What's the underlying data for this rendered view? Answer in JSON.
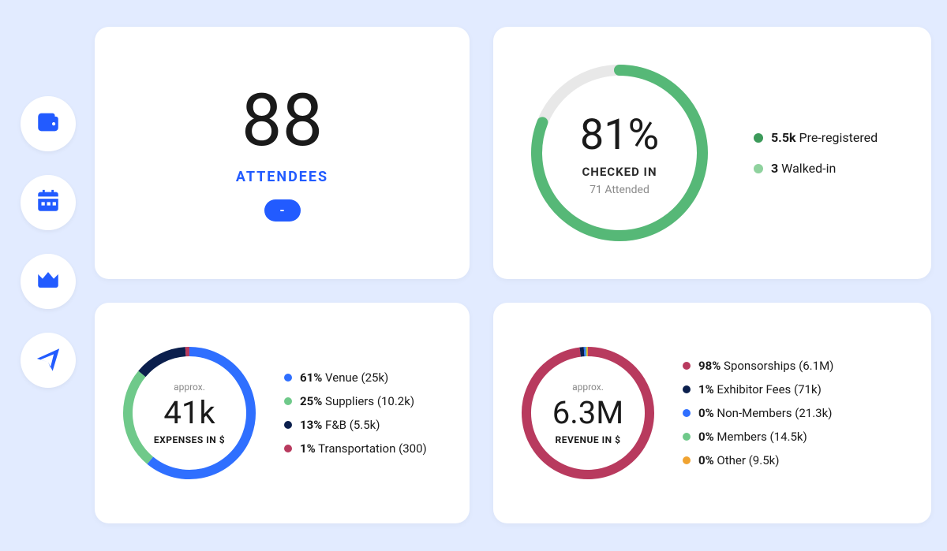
{
  "colors": {
    "bg": "#e2ebff",
    "accent": "#225bff",
    "card": "#ffffff",
    "text": "#1a1a1a",
    "muted": "#888888",
    "ring_track": "#e8e8e8"
  },
  "sidebar": {
    "icon_color": "#225bff",
    "items": [
      {
        "name": "wallet-icon"
      },
      {
        "name": "calendar-icon"
      },
      {
        "name": "crown-icon"
      },
      {
        "name": "send-icon"
      }
    ]
  },
  "attendees": {
    "count": "88",
    "label": "ATTENDEES",
    "pill": "-"
  },
  "checked_in": {
    "type": "progress-ring",
    "percent": 81,
    "percent_label": "81%",
    "sub_label": "CHECKED IN",
    "attended_label": "71 Attended",
    "ring_color": "#56b877",
    "track_color": "#e8e8e8",
    "ring_width": 14,
    "legend": [
      {
        "value": "5.5k",
        "label": "Pre-registered",
        "color": "#3c9a5a"
      },
      {
        "value": "3",
        "label": "Walked-in",
        "color": "#8fd29e"
      }
    ]
  },
  "expenses": {
    "type": "donut",
    "approx_label": "approx.",
    "center_value": "41k",
    "center_label": "EXPENSES IN $",
    "ring_width": 12,
    "slices": [
      {
        "pct": 61,
        "color": "#2f6fff",
        "legend": "61% Venue (25k)",
        "bold": "61%"
      },
      {
        "pct": 25,
        "color": "#6fc98a",
        "legend": "25% Suppliers (10.2k)",
        "bold": "25%"
      },
      {
        "pct": 13,
        "color": "#0b1f4d",
        "legend": "13% F&B (5.5k)",
        "bold": "13%"
      },
      {
        "pct": 1,
        "color": "#b83a5e",
        "legend": "1% Transportation (300)",
        "bold": "1%"
      }
    ]
  },
  "revenue": {
    "type": "donut",
    "approx_label": "approx.",
    "center_value": "6.3M",
    "center_label": "REVENUE IN $",
    "ring_width": 12,
    "slices": [
      {
        "pct": 98,
        "color": "#b83a5e",
        "legend": "98% Sponsorships (6.1M)",
        "bold": "98%"
      },
      {
        "pct": 1,
        "color": "#0b1f4d",
        "legend": "1% Exhibitor Fees (71k)",
        "bold": "1%"
      },
      {
        "pct": 0.4,
        "color": "#2f6fff",
        "legend": "0% Non-Members (21.3k)",
        "bold": "0%"
      },
      {
        "pct": 0.3,
        "color": "#6fc98a",
        "legend": "0% Members (14.5k)",
        "bold": "0%"
      },
      {
        "pct": 0.3,
        "color": "#f0a330",
        "legend": "0% Other (9.5k)",
        "bold": "0%"
      }
    ]
  }
}
